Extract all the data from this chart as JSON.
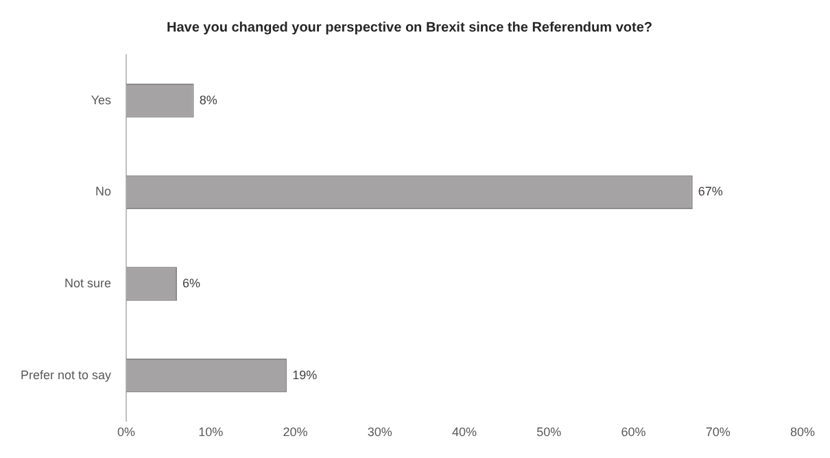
{
  "chart_data": {
    "type": "bar",
    "orientation": "horizontal",
    "title": "Have you changed your perspective on Brexit since the Referendum vote?",
    "categories": [
      "Yes",
      "No",
      "Not sure",
      "Prefer not to say"
    ],
    "values": [
      8,
      67,
      6,
      19
    ],
    "value_labels": [
      "8%",
      "67%",
      "6%",
      "19%"
    ],
    "color": "#a5a3a3",
    "xlim": [
      0,
      80
    ],
    "xticks": [
      {
        "value": 0,
        "label": "0%"
      },
      {
        "value": 10,
        "label": "10%"
      },
      {
        "value": 20,
        "label": "20%"
      },
      {
        "value": 30,
        "label": "30%"
      },
      {
        "value": 40,
        "label": "40%"
      },
      {
        "value": 50,
        "label": "50%"
      },
      {
        "value": 60,
        "label": "60%"
      },
      {
        "value": 70,
        "label": "70%"
      },
      {
        "value": 80,
        "label": "80%"
      }
    ],
    "grid": false,
    "legend": false
  }
}
